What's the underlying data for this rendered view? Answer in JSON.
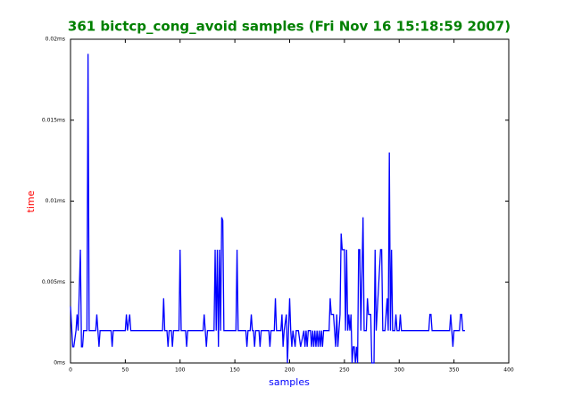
{
  "chart_data": {
    "type": "line",
    "title": "361 bictcp_cong_avoid samples (Fri Nov 16 15:18:59 2007)",
    "x_label": "samples",
    "y_label": "time",
    "xlim": [
      0,
      400
    ],
    "xticks": [
      0,
      50,
      100,
      150,
      200,
      250,
      300,
      350,
      400
    ],
    "ylim": [
      0,
      0.02
    ],
    "yticks": [
      {
        "value": 0,
        "label": "0ms"
      },
      {
        "value": 0.005,
        "label": "0.005ms"
      },
      {
        "value": 0.01,
        "label": "0.01ms"
      },
      {
        "value": 0.015,
        "label": "0.015ms"
      },
      {
        "value": 0.02,
        "label": "0.02ms"
      }
    ],
    "series": [
      {
        "color": "#0000ff",
        "x": [
          0,
          2,
          3,
          5,
          6,
          7,
          9,
          10,
          11,
          12,
          15,
          16,
          17,
          23,
          24,
          25,
          26,
          27,
          37,
          38,
          39,
          50,
          51,
          52,
          54,
          55,
          84,
          85,
          86,
          88,
          89,
          90,
          92,
          93,
          94,
          99,
          100,
          101,
          105,
          106,
          107,
          121,
          122,
          123,
          124,
          125,
          131,
          132,
          133,
          134,
          135,
          136,
          137,
          138,
          139,
          140,
          151,
          152,
          153,
          160,
          161,
          162,
          164,
          165,
          166,
          167,
          168,
          169,
          172,
          173,
          174,
          181,
          182,
          183,
          186,
          187,
          188,
          192,
          193,
          194,
          195,
          197,
          198,
          199,
          200,
          201,
          202,
          203,
          205,
          206,
          208,
          210,
          213,
          214,
          215,
          216,
          217,
          219,
          220,
          221,
          222,
          223,
          224,
          225,
          226,
          227,
          228,
          229,
          230,
          231,
          236,
          237,
          238,
          240,
          242,
          243,
          244,
          246,
          247,
          248,
          250,
          251,
          252,
          253,
          254,
          255,
          256,
          257,
          258,
          259,
          260,
          261,
          262,
          263,
          264,
          265,
          267,
          268,
          270,
          271,
          272,
          274,
          275,
          277,
          278,
          279,
          283,
          284,
          285,
          287,
          288,
          289,
          290,
          291,
          292,
          293,
          294,
          296,
          297,
          298,
          300,
          301,
          302,
          327,
          328,
          329,
          330,
          346,
          347,
          348,
          349,
          350,
          355,
          356,
          357,
          358,
          360
        ],
        "values": [
          0.0035,
          0.001,
          0.001,
          0.002,
          0.003,
          0.002,
          0.007,
          0.001,
          0.001,
          0.002,
          0.002,
          0.0191,
          0.002,
          0.002,
          0.003,
          0.002,
          0.001,
          0.002,
          0.002,
          0.001,
          0.002,
          0.002,
          0.003,
          0.002,
          0.003,
          0.002,
          0.002,
          0.004,
          0.002,
          0.002,
          0.001,
          0.002,
          0.002,
          0.001,
          0.002,
          0.002,
          0.007,
          0.002,
          0.002,
          0.001,
          0.002,
          0.002,
          0.003,
          0.002,
          0.001,
          0.002,
          0.002,
          0.007,
          0.002,
          0.007,
          0.001,
          0.007,
          0.002,
          0.009,
          0.0088,
          0.002,
          0.002,
          0.007,
          0.002,
          0.002,
          0.001,
          0.002,
          0.002,
          0.003,
          0.002,
          0.002,
          0.001,
          0.002,
          0.002,
          0.001,
          0.002,
          0.002,
          0.001,
          0.002,
          0.002,
          0.004,
          0.002,
          0.002,
          0.003,
          0.001,
          0.002,
          0.003,
          0,
          0.002,
          0.004,
          0.002,
          0.001,
          0.002,
          0.001,
          0.002,
          0.002,
          0.001,
          0.002,
          0.001,
          0.002,
          0.001,
          0.002,
          0.002,
          0.001,
          0.002,
          0.001,
          0.002,
          0.001,
          0.002,
          0.001,
          0.002,
          0.001,
          0.002,
          0.001,
          0.002,
          0.002,
          0.004,
          0.003,
          0.003,
          0.001,
          0.003,
          0.001,
          0.003,
          0.008,
          0.007,
          0.007,
          0.002,
          0.007,
          0.002,
          0.003,
          0.002,
          0.003,
          0,
          0.001,
          0.001,
          0,
          0.001,
          0,
          0.007,
          0.007,
          0.002,
          0.009,
          0.002,
          0.002,
          0.004,
          0.003,
          0.003,
          0,
          0,
          0.007,
          0.002,
          0.007,
          0.007,
          0.002,
          0.002,
          0.003,
          0.004,
          0.002,
          0.013,
          0.002,
          0.007,
          0.002,
          0.002,
          0.003,
          0.002,
          0.002,
          0.003,
          0.002,
          0.002,
          0.003,
          0.003,
          0.002,
          0.002,
          0.003,
          0.002,
          0.001,
          0.002,
          0.002,
          0.003,
          0.003,
          0.002,
          0.002
        ]
      }
    ]
  }
}
